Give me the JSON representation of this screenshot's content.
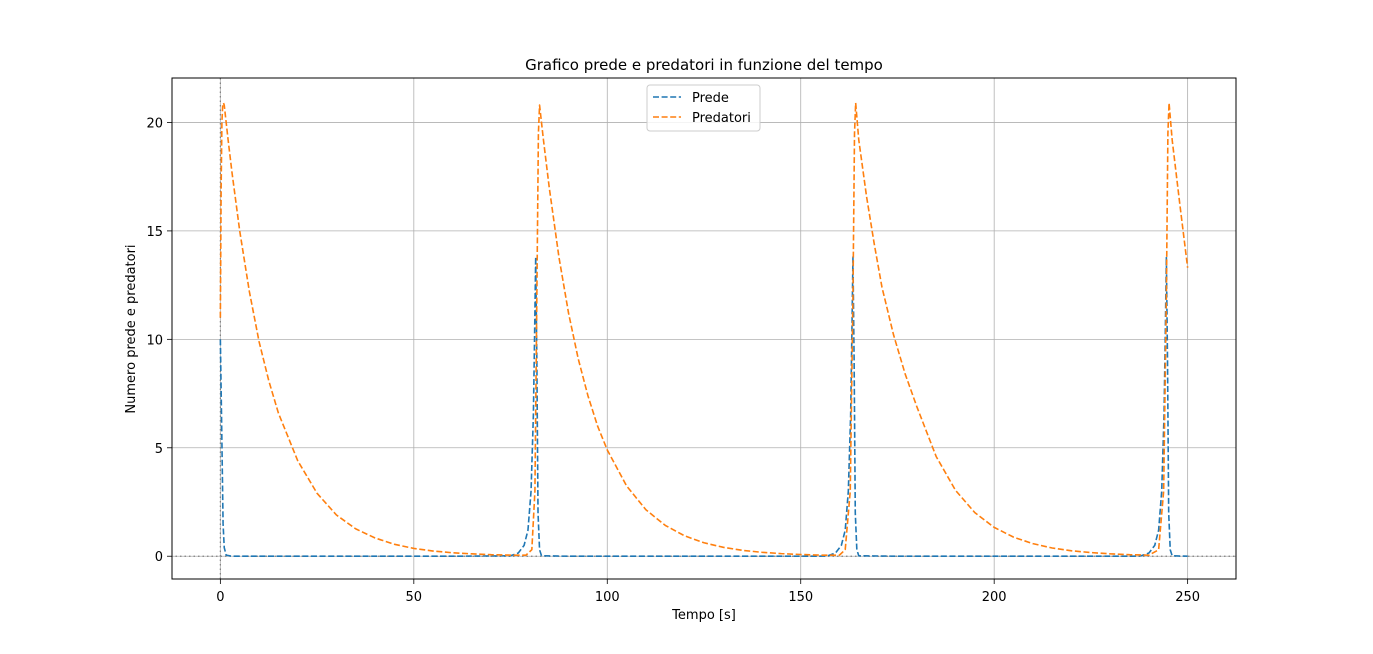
{
  "chart_data": {
    "type": "line",
    "title": "Grafico prede e predatori in funzione del tempo",
    "xlabel": "Tempo [s]",
    "ylabel": "Numero prede e predatori",
    "xlim": [
      -12.5,
      262.5
    ],
    "ylim": [
      -1.05,
      22.05
    ],
    "xticks": [
      0,
      50,
      100,
      150,
      200,
      250
    ],
    "yticks": [
      0,
      5,
      10,
      15,
      20
    ],
    "grid": true,
    "legend": "upper center",
    "reference_lines": {
      "x": 0,
      "y": 0,
      "style": "dotted",
      "color": "#808080"
    },
    "series": [
      {
        "name": "Prede",
        "color": "#1f77b4",
        "linestyle": "dashed",
        "x": [
          0,
          0.3,
          0.7,
          1.0,
          1.5,
          3,
          60,
          75,
          77,
          78.5,
          79.5,
          80.3,
          80.9,
          81.2,
          81.5,
          81.8,
          82.1,
          82.5,
          83,
          90,
          155,
          157,
          159,
          160.5,
          161.5,
          162.3,
          162.9,
          163.2,
          163.5,
          163.8,
          164.1,
          164.5,
          165,
          175,
          236,
          238,
          240,
          241.5,
          242.5,
          243.3,
          243.9,
          244.2,
          244.5,
          244.8,
          245.1,
          245.5,
          246,
          250
        ],
        "y": [
          10,
          6.5,
          1.5,
          0.4,
          0.05,
          0,
          0,
          0.02,
          0.15,
          0.5,
          1.2,
          3,
          6.5,
          10,
          13.8,
          9,
          2,
          0.3,
          0.02,
          0,
          0,
          0.02,
          0.15,
          0.5,
          1.2,
          3,
          6.5,
          10,
          13.8,
          9,
          2,
          0.3,
          0.02,
          0,
          0,
          0.02,
          0.15,
          0.5,
          1.2,
          3,
          6.5,
          10,
          13.8,
          9,
          2,
          0.3,
          0.02,
          0
        ]
      },
      {
        "name": "Predatori",
        "color": "#ff7f0e",
        "linestyle": "dashed",
        "x": [
          0,
          0.2,
          0.4,
          0.6,
          0.8,
          1.0,
          2,
          3,
          5,
          7.5,
          10,
          12.5,
          15,
          20,
          25,
          30,
          35,
          40,
          45,
          50,
          55,
          60,
          65,
          70,
          75,
          79,
          80.5,
          81.3,
          81.8,
          82.2,
          82.5,
          83.5,
          85,
          87.5,
          90,
          92.5,
          95,
          97.5,
          100,
          105,
          110,
          115,
          120,
          125,
          130,
          135,
          140,
          145,
          150,
          155,
          160,
          161.5,
          162.8,
          163.5,
          163.9,
          164.2,
          165,
          167,
          169,
          171,
          174,
          177,
          180,
          185,
          190,
          195,
          200,
          205,
          210,
          215,
          220,
          225,
          230,
          235,
          240,
          242.5,
          243.8,
          244.5,
          244.9,
          245.2,
          246,
          248,
          250
        ],
        "y": [
          11,
          17,
          20,
          20.8,
          20.9,
          20.8,
          19.2,
          17.7,
          15,
          12.2,
          9.9,
          8.1,
          6.6,
          4.4,
          2.9,
          1.9,
          1.26,
          0.84,
          0.55,
          0.36,
          0.24,
          0.16,
          0.11,
          0.07,
          0.05,
          0.05,
          0.3,
          3,
          12,
          19.5,
          20.8,
          19.2,
          17,
          13.8,
          11.2,
          9.1,
          7.4,
          6.0,
          4.9,
          3.24,
          2.14,
          1.42,
          0.94,
          0.62,
          0.41,
          0.27,
          0.18,
          0.12,
          0.08,
          0.05,
          0.05,
          0.3,
          3,
          12,
          19.5,
          20.9,
          19.2,
          16.6,
          14.4,
          12.4,
          10.2,
          8.4,
          6.9,
          4.6,
          3.04,
          2.01,
          1.33,
          0.88,
          0.58,
          0.38,
          0.25,
          0.17,
          0.11,
          0.07,
          0.05,
          0.3,
          3,
          12,
          19.5,
          20.9,
          19.2,
          16.2,
          13.3
        ]
      }
    ]
  }
}
